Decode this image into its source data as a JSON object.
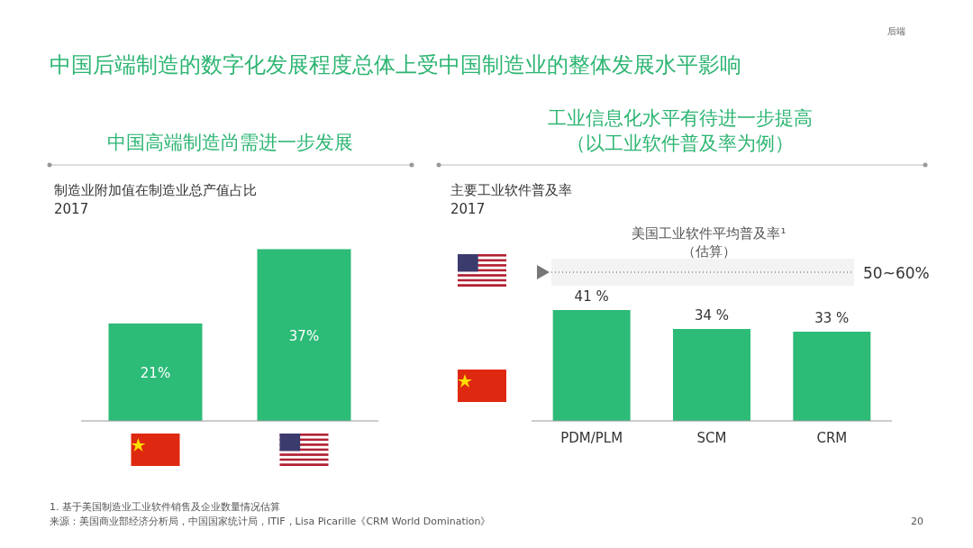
{
  "chart_data": [
    {
      "type": "bar",
      "title": "中国高端制造尚需进一步发展",
      "subtitle": "制造业附加值在制造业总产值占比\n2017",
      "categories": [
        null,
        null
      ],
      "values": [
        21,
        37
      ],
      "color": "#2dbb78",
      "value_labels": [
        "21%",
        "37%"
      ],
      "annotations": [
        "中国后端制造的数字化发展程度总体上受中国制造业的整体发展水平影响",
        "后端",
        "1. 基于美国制造业工业软件销售及企业数量情况估算",
        "来源：美国商业部经济分析局，中国国家统计局，ITIF，Lisa Picarille《CRM World Domination》",
        "20"
      ]
    },
    {
      "type": "bar",
      "title": "工业信息化水平有待进一步提高（以工业软件普及率为例）",
      "subtitle": "主要工业软件普及率\n2017",
      "categories": [
        "PDM/PLM",
        "SCM",
        "CRM"
      ],
      "values": [
        41,
        34,
        33
      ],
      "color": "#2dbb78",
      "value_labels": [
        "41 %",
        "34 %",
        "33 %"
      ],
      "bands": [
        {
          "axis": "y",
          "from": 50,
          "to": 60,
          "label": "50~60%",
          "color": "#f3f3f3"
        }
      ],
      "annotations": [
        "美国工业软件平均普及率¹\n（估算）"
      ]
    }
  ]
}
